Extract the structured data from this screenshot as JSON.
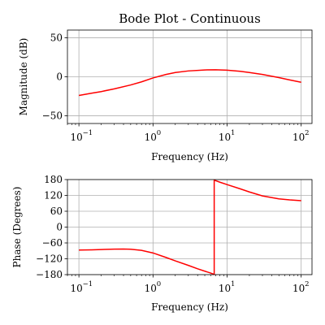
{
  "chart_data": [
    {
      "type": "line",
      "title": "Bode Plot - Continuous",
      "xlabel": "Frequency (Hz)",
      "ylabel": "Magnitude (dB)",
      "xscale": "log",
      "xlim": [
        0.07,
        140
      ],
      "ylim": [
        -60,
        60
      ],
      "yticks": [
        -50,
        0,
        50
      ],
      "xticks": [
        0.1,
        1,
        10,
        100
      ],
      "xtick_labels": [
        {
          "base": "10",
          "exp": "−1"
        },
        {
          "base": "10",
          "exp": "0"
        },
        {
          "base": "10",
          "exp": "1"
        },
        {
          "base": "10",
          "exp": "2"
        }
      ],
      "grid": true,
      "color": "#ff0000",
      "series": [
        {
          "x": [
            0.1,
            0.15,
            0.2,
            0.3,
            0.5,
            0.7,
            1,
            1.5,
            2,
            3,
            5,
            7,
            10,
            15,
            20,
            30,
            50,
            70,
            100
          ],
          "y": [
            -24,
            -21,
            -19,
            -15.5,
            -10.5,
            -6.5,
            -1.5,
            3,
            5.5,
            7.5,
            8.8,
            9,
            8.5,
            7,
            5.5,
            3,
            -1,
            -4,
            -7
          ]
        }
      ]
    },
    {
      "type": "line",
      "title": "",
      "xlabel": "Frequency (Hz)",
      "ylabel": "Phase (Degrees)",
      "xscale": "log",
      "xlim": [
        0.07,
        140
      ],
      "ylim": [
        -180,
        180
      ],
      "yticks": [
        -180,
        -120,
        -60,
        0,
        60,
        120,
        180
      ],
      "xticks": [
        0.1,
        1,
        10,
        100
      ],
      "xtick_labels": [
        {
          "base": "10",
          "exp": "−1"
        },
        {
          "base": "10",
          "exp": "0"
        },
        {
          "base": "10",
          "exp": "1"
        },
        {
          "base": "10",
          "exp": "2"
        }
      ],
      "grid": true,
      "color": "#ff0000",
      "series": [
        {
          "x": [
            0.1,
            0.15,
            0.2,
            0.3,
            0.4,
            0.5,
            0.7,
            1,
            1.5,
            2,
            3,
            4,
            5,
            6,
            6.7,
            6.7,
            8,
            10,
            15,
            20,
            30,
            50,
            70,
            100
          ],
          "y": [
            -87,
            -86,
            -85,
            -83.5,
            -83,
            -84,
            -88,
            -98,
            -115,
            -128,
            -145,
            -158,
            -167,
            -174,
            -179,
            178,
            170,
            161,
            145,
            133,
            118,
            107,
            103,
            100
          ]
        }
      ]
    }
  ]
}
